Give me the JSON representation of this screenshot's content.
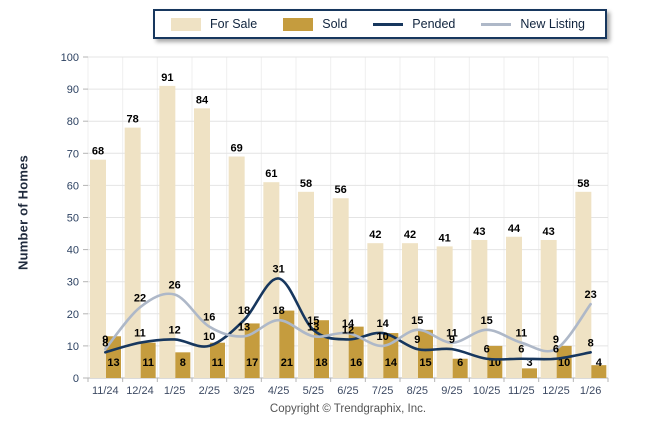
{
  "legend": {
    "items": [
      {
        "label": "For Sale",
        "swatch": "bar-swatch",
        "color": "#EFE2C4"
      },
      {
        "label": "Sold",
        "swatch": "bar-swatch",
        "color": "#C59C3E"
      },
      {
        "label": "Pended",
        "swatch": "line-swatch",
        "color": "#17375E"
      },
      {
        "label": "New Listing",
        "swatch": "line-swatch",
        "color": "#AEB8C8"
      }
    ]
  },
  "footer": {
    "copyright": "Copyright © Trendgraphix, Inc."
  },
  "chart_data": {
    "type": "bar",
    "subtype": "grouped-bars-with-smooth-lines",
    "title": "",
    "xlabel": "",
    "ylabel": "Number of Homes",
    "ylim": [
      0,
      100
    ],
    "ytick_step": 10,
    "grid": true,
    "legend_position": "top-center",
    "categories": [
      "11/24",
      "12/24",
      "1/25",
      "2/25",
      "3/25",
      "4/25",
      "5/25",
      "6/25",
      "7/25",
      "8/25",
      "9/25",
      "10/25",
      "11/25",
      "12/25",
      "1/26"
    ],
    "series": [
      {
        "name": "For Sale",
        "type": "bar",
        "color": "#EFE2C4",
        "label_position": "above-bar",
        "values": [
          68,
          78,
          91,
          84,
          69,
          61,
          58,
          56,
          42,
          42,
          41,
          43,
          44,
          43,
          58
        ]
      },
      {
        "name": "Sold",
        "type": "bar",
        "color": "#C59C3E",
        "label_position": "bottom-row",
        "values": [
          13,
          11,
          8,
          11,
          17,
          21,
          18,
          16,
          14,
          15,
          6,
          10,
          3,
          10,
          4
        ]
      },
      {
        "name": "Pended",
        "type": "line",
        "color": "#17375E",
        "label_position": "above-point",
        "values": [
          8,
          11,
          12,
          10,
          18,
          31,
          15,
          12,
          14,
          9,
          9,
          6,
          6,
          6,
          8
        ]
      },
      {
        "name": "New Listing",
        "type": "line",
        "color": "#AEB8C8",
        "label_position": "above-point",
        "values": [
          9,
          22,
          26,
          16,
          13,
          18,
          13,
          14,
          10,
          15,
          11,
          15,
          11,
          9,
          23
        ]
      }
    ],
    "value_label_color": "#000000",
    "tick_label_color": "#2D4262",
    "grid_color": "#E4E4E4",
    "axis_color": "#B5B5B5"
  }
}
